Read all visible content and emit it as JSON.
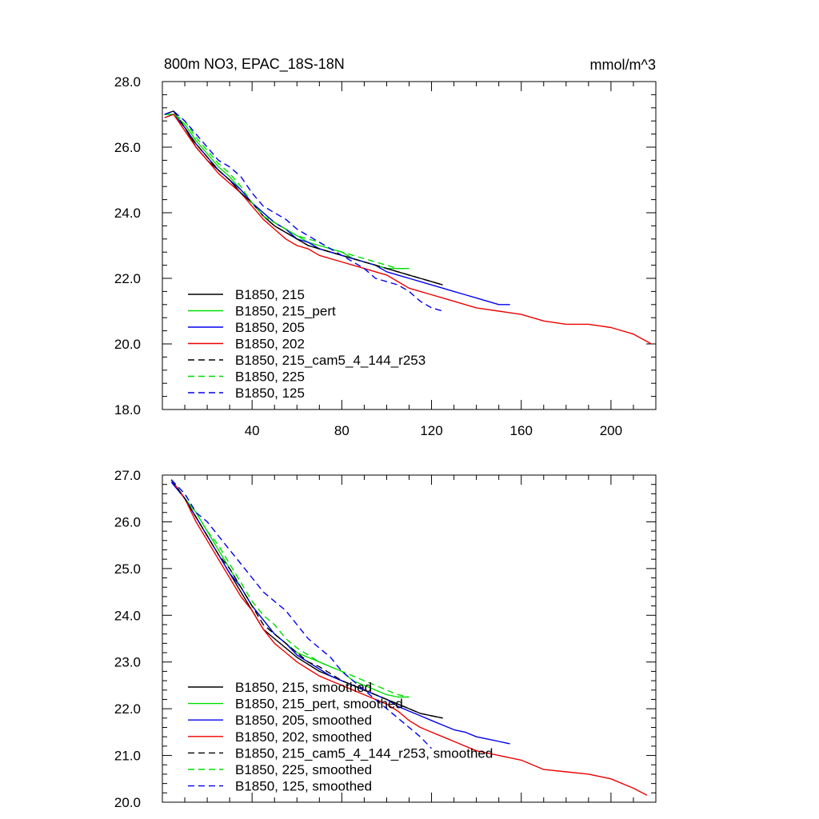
{
  "chart_data": [
    {
      "type": "line",
      "title": "800m NO3, EPAC_18S-18N",
      "units": "mmol/m^3",
      "xlim": [
        0,
        220
      ],
      "ylim": [
        18.0,
        28.0
      ],
      "x_ticks": [
        40,
        80,
        120,
        160,
        200
      ],
      "y_ticks": [
        "18.0",
        "20.0",
        "22.0",
        "24.0",
        "26.0",
        "28.0"
      ],
      "grid": false,
      "legend_position": "bottom-left",
      "series": [
        {
          "name": "B1850, 215",
          "color": "#000000",
          "dash": "solid",
          "x": [
            1,
            5,
            10,
            15,
            20,
            25,
            30,
            35,
            40,
            45,
            50,
            55,
            60,
            65,
            70,
            75,
            80,
            85,
            90,
            95,
            100,
            105,
            110,
            115,
            120,
            125
          ],
          "y": [
            27.0,
            27.1,
            26.6,
            26.0,
            25.6,
            25.3,
            25.0,
            24.6,
            24.3,
            23.9,
            23.6,
            23.4,
            23.2,
            23.0,
            22.9,
            22.8,
            22.7,
            22.6,
            22.5,
            22.4,
            22.3,
            22.2,
            22.1,
            22.0,
            21.9,
            21.8
          ]
        },
        {
          "name": "B1850, 215_pert",
          "color": "#00dd00",
          "dash": "solid",
          "x": [
            1,
            5,
            10,
            15,
            20,
            25,
            30,
            35,
            40,
            45,
            50,
            55,
            60,
            65,
            70,
            75,
            80,
            85,
            90,
            95,
            100,
            105,
            110
          ],
          "y": [
            27.0,
            27.0,
            26.7,
            26.2,
            25.8,
            25.4,
            25.1,
            24.7,
            24.3,
            24.0,
            23.7,
            23.5,
            23.3,
            23.1,
            23.0,
            22.9,
            22.8,
            22.6,
            22.5,
            22.4,
            22.3,
            22.3,
            22.3
          ]
        },
        {
          "name": "B1850, 205",
          "color": "#0000ee",
          "dash": "solid",
          "x": [
            1,
            5,
            10,
            15,
            20,
            25,
            30,
            35,
            40,
            45,
            50,
            55,
            60,
            65,
            70,
            75,
            80,
            85,
            90,
            95,
            100,
            105,
            110,
            115,
            120,
            125,
            130,
            135,
            140,
            145,
            150,
            155
          ],
          "y": [
            26.9,
            27.0,
            26.6,
            26.1,
            25.7,
            25.3,
            25.0,
            24.7,
            24.3,
            24.0,
            23.7,
            23.5,
            23.2,
            23.1,
            22.9,
            22.8,
            22.7,
            22.6,
            22.5,
            22.4,
            22.2,
            22.1,
            22.0,
            21.9,
            21.8,
            21.7,
            21.6,
            21.5,
            21.4,
            21.3,
            21.2,
            21.2
          ]
        },
        {
          "name": "B1850, 202",
          "color": "#ee0000",
          "dash": "solid",
          "x": [
            1,
            5,
            10,
            15,
            20,
            25,
            30,
            35,
            40,
            45,
            50,
            55,
            60,
            65,
            70,
            75,
            80,
            85,
            90,
            95,
            100,
            105,
            110,
            115,
            120,
            125,
            130,
            140,
            150,
            160,
            170,
            180,
            190,
            200,
            210,
            218
          ],
          "y": [
            26.9,
            27.0,
            26.5,
            26.0,
            25.6,
            25.2,
            24.9,
            24.6,
            24.2,
            23.8,
            23.5,
            23.2,
            23.0,
            22.9,
            22.7,
            22.6,
            22.5,
            22.4,
            22.3,
            22.2,
            22.1,
            21.9,
            21.7,
            21.6,
            21.5,
            21.4,
            21.3,
            21.1,
            21.0,
            20.9,
            20.7,
            20.6,
            20.6,
            20.5,
            20.3,
            20.0
          ]
        },
        {
          "name": "B1850, 215_cam5_4_144_r253",
          "color": "#000000",
          "dash": "dashed",
          "x": [
            1,
            5,
            10,
            15,
            20,
            25,
            30,
            35,
            40,
            45,
            50,
            55,
            60,
            65,
            70,
            75,
            80,
            85,
            90,
            95,
            100,
            105,
            110,
            115,
            120,
            125
          ],
          "y": [
            27.0,
            27.1,
            26.6,
            26.1,
            25.7,
            25.3,
            25.0,
            24.6,
            24.3,
            23.9,
            23.6,
            23.4,
            23.2,
            23.0,
            22.9,
            22.8,
            22.7,
            22.6,
            22.5,
            22.4,
            22.3,
            22.2,
            22.1,
            22.0,
            21.9,
            21.8
          ]
        },
        {
          "name": "B1850, 225",
          "color": "#00dd00",
          "dash": "dashed",
          "x": [
            1,
            5,
            10,
            15,
            20,
            25,
            30,
            35,
            40,
            45,
            50,
            55,
            60,
            65,
            70,
            75,
            80,
            85,
            90,
            95,
            100,
            105,
            110
          ],
          "y": [
            27.0,
            27.0,
            26.8,
            26.3,
            25.9,
            25.5,
            25.2,
            24.8,
            24.3,
            23.9,
            23.7,
            23.5,
            23.3,
            23.2,
            23.1,
            22.9,
            22.8,
            22.7,
            22.6,
            22.5,
            22.4,
            22.3,
            22.3
          ]
        },
        {
          "name": "B1850, 125",
          "color": "#0000ee",
          "dash": "dashed",
          "x": [
            1,
            5,
            10,
            15,
            20,
            25,
            30,
            35,
            40,
            45,
            50,
            55,
            60,
            65,
            70,
            75,
            80,
            85,
            90,
            95,
            100,
            105,
            110,
            115,
            120,
            125
          ],
          "y": [
            27.0,
            27.1,
            26.8,
            26.4,
            26.0,
            25.6,
            25.4,
            25.1,
            24.6,
            24.2,
            24.0,
            23.8,
            23.5,
            23.3,
            23.1,
            22.9,
            22.7,
            22.5,
            22.3,
            22.0,
            21.9,
            21.8,
            21.6,
            21.3,
            21.1,
            21.0
          ]
        }
      ]
    },
    {
      "type": "line",
      "title": "",
      "xlim": [
        0,
        220
      ],
      "ylim": [
        20.0,
        27.0
      ],
      "y_ticks": [
        "20.0",
        "21.0",
        "22.0",
        "23.0",
        "24.0",
        "25.0",
        "26.0",
        "27.0"
      ],
      "grid": false,
      "legend_position": "bottom-left",
      "series": [
        {
          "name": "B1850, 215, smoothed",
          "color": "#000000",
          "dash": "solid",
          "x": [
            4,
            10,
            15,
            20,
            25,
            30,
            35,
            40,
            45,
            50,
            55,
            60,
            65,
            70,
            75,
            80,
            85,
            90,
            95,
            100,
            105,
            110,
            115,
            120,
            125
          ],
          "y": [
            26.9,
            26.5,
            26.1,
            25.7,
            25.3,
            24.9,
            24.5,
            24.1,
            23.7,
            23.5,
            23.3,
            23.1,
            22.95,
            22.8,
            22.7,
            22.6,
            22.5,
            22.4,
            22.3,
            22.2,
            22.1,
            22.0,
            21.9,
            21.85,
            21.8
          ]
        },
        {
          "name": "B1850, 215_pert, smoothed",
          "color": "#00dd00",
          "dash": "solid",
          "x": [
            4,
            10,
            15,
            20,
            25,
            30,
            35,
            40,
            45,
            50,
            55,
            60,
            65,
            70,
            75,
            80,
            85,
            90,
            95,
            100,
            105,
            110
          ],
          "y": [
            26.9,
            26.5,
            26.2,
            25.8,
            25.4,
            25.0,
            24.6,
            24.2,
            23.9,
            23.6,
            23.4,
            23.2,
            23.1,
            23.0,
            22.9,
            22.8,
            22.6,
            22.5,
            22.4,
            22.3,
            22.25,
            22.25
          ]
        },
        {
          "name": "B1850, 205, smoothed",
          "color": "#0000ee",
          "dash": "solid",
          "x": [
            4,
            10,
            15,
            20,
            25,
            30,
            35,
            40,
            45,
            50,
            55,
            60,
            65,
            70,
            75,
            80,
            85,
            90,
            95,
            100,
            105,
            110,
            115,
            120,
            125,
            130,
            135,
            140,
            145,
            150,
            155
          ],
          "y": [
            26.85,
            26.5,
            26.1,
            25.7,
            25.3,
            24.9,
            24.6,
            24.2,
            23.9,
            23.6,
            23.4,
            23.15,
            23.0,
            22.85,
            22.7,
            22.6,
            22.5,
            22.4,
            22.3,
            22.2,
            22.05,
            21.95,
            21.85,
            21.75,
            21.65,
            21.55,
            21.5,
            21.4,
            21.35,
            21.3,
            21.25
          ]
        },
        {
          "name": "B1850, 202, smoothed",
          "color": "#ee0000",
          "dash": "solid",
          "x": [
            4,
            10,
            15,
            20,
            25,
            30,
            35,
            40,
            45,
            50,
            55,
            60,
            65,
            70,
            75,
            80,
            85,
            90,
            95,
            100,
            105,
            110,
            115,
            120,
            125,
            130,
            140,
            150,
            160,
            170,
            180,
            190,
            200,
            210,
            216
          ],
          "y": [
            26.9,
            26.5,
            26.0,
            25.6,
            25.2,
            24.8,
            24.4,
            24.1,
            23.7,
            23.4,
            23.2,
            23.0,
            22.85,
            22.7,
            22.6,
            22.5,
            22.4,
            22.3,
            22.2,
            22.1,
            21.95,
            21.75,
            21.6,
            21.5,
            21.4,
            21.3,
            21.1,
            21.0,
            20.9,
            20.7,
            20.65,
            20.6,
            20.5,
            20.3,
            20.15
          ]
        },
        {
          "name": "B1850, 215_cam5_4_144_r253, smoothed",
          "color": "#000000",
          "dash": "dashed",
          "x": [
            4,
            10,
            15,
            20,
            25,
            30,
            35,
            40,
            45,
            50,
            55,
            60,
            65,
            70,
            75,
            80,
            85,
            90,
            95,
            100,
            105,
            110,
            115,
            120,
            125
          ],
          "y": [
            26.9,
            26.5,
            26.1,
            25.7,
            25.3,
            25.0,
            24.6,
            24.2,
            23.8,
            23.6,
            23.4,
            23.2,
            23.0,
            22.9,
            22.75,
            22.6,
            22.5,
            22.4,
            22.3,
            22.2,
            22.1,
            22.0,
            21.9,
            21.85,
            21.8
          ]
        },
        {
          "name": "B1850, 225, smoothed",
          "color": "#00dd00",
          "dash": "dashed",
          "x": [
            4,
            10,
            15,
            20,
            25,
            30,
            35,
            40,
            45,
            50,
            55,
            60,
            65,
            70,
            75,
            80,
            85,
            90,
            95,
            100,
            105,
            110
          ],
          "y": [
            26.9,
            26.6,
            26.2,
            25.8,
            25.5,
            25.1,
            24.7,
            24.3,
            24.0,
            23.8,
            23.5,
            23.3,
            23.15,
            23.0,
            22.9,
            22.8,
            22.7,
            22.6,
            22.5,
            22.4,
            22.3,
            22.25
          ]
        },
        {
          "name": "B1850, 125, smoothed",
          "color": "#0000ee",
          "dash": "dashed",
          "x": [
            4,
            10,
            15,
            20,
            25,
            30,
            35,
            40,
            45,
            50,
            55,
            60,
            65,
            70,
            75,
            80,
            85,
            90,
            95,
            100,
            105,
            110,
            115,
            120
          ],
          "y": [
            26.9,
            26.6,
            26.2,
            26.0,
            25.7,
            25.4,
            25.1,
            24.8,
            24.5,
            24.3,
            24.1,
            23.8,
            23.5,
            23.3,
            23.1,
            22.8,
            22.6,
            22.4,
            22.2,
            22.0,
            21.8,
            21.6,
            21.4,
            21.15
          ]
        }
      ]
    }
  ]
}
